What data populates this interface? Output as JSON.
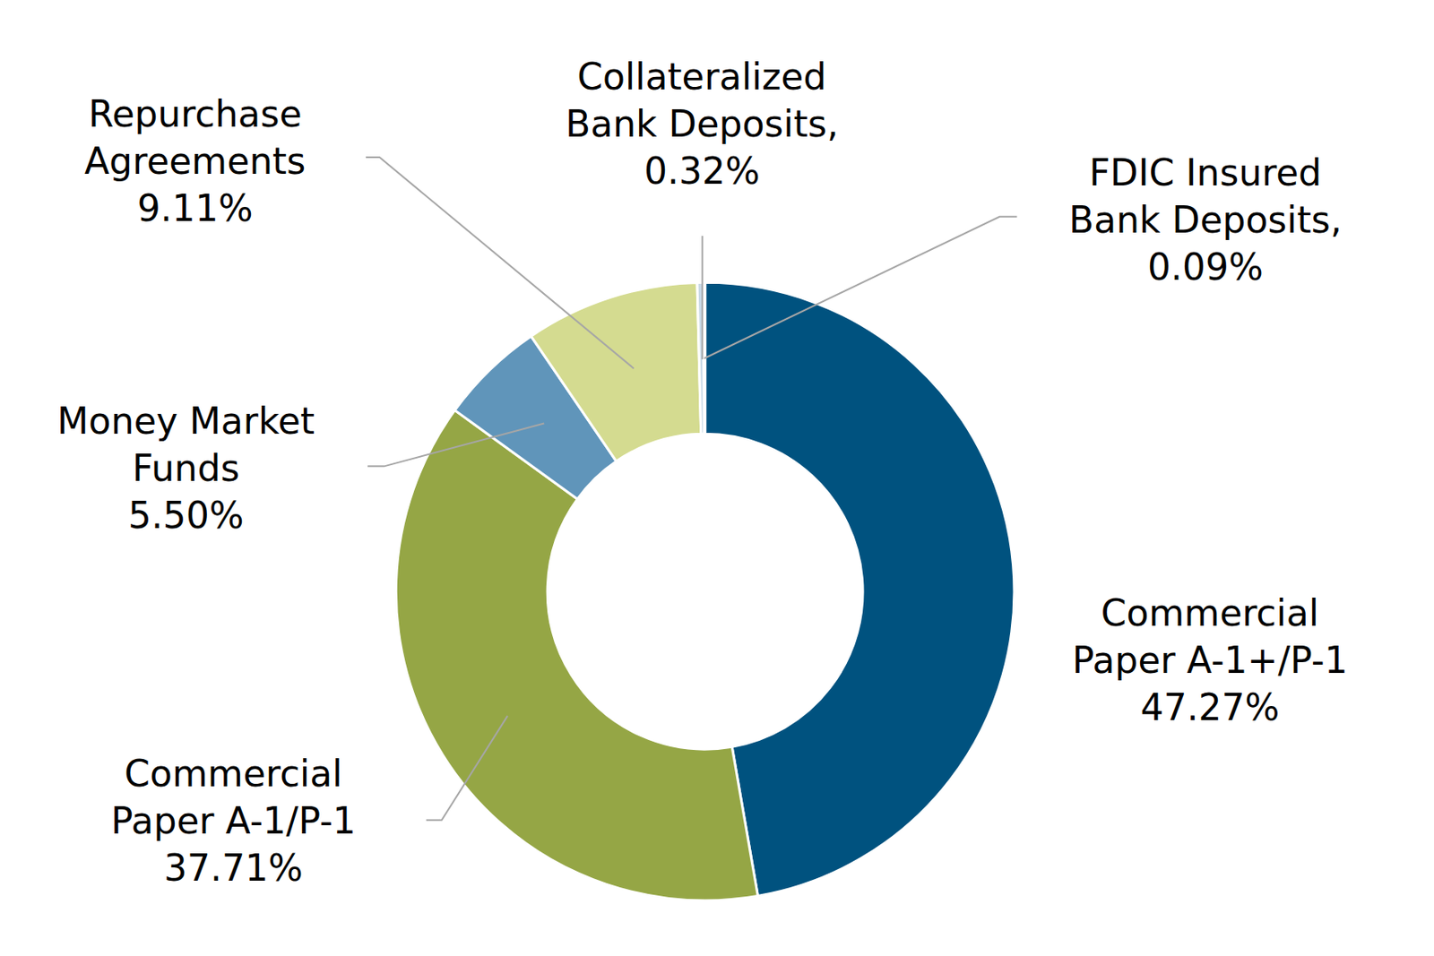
{
  "chart_data": {
    "type": "pie",
    "categories": [
      "Commercial Paper A-1+/P-1",
      "Commercial Paper A-1/P-1",
      "Money Market Funds",
      "Repurchase Agreements",
      "Collateralized Bank Deposits,",
      "FDIC Insured Bank Deposits,"
    ],
    "values": [
      47.27,
      37.71,
      5.5,
      9.11,
      0.32,
      0.09
    ],
    "value_labels": [
      "47.27%",
      "37.71%",
      "5.50%",
      "9.11%",
      "0.32%",
      "0.09%"
    ],
    "colors": [
      "#00527f",
      "#95a645",
      "#6095ba",
      "#d4db90",
      "#c9d9e6",
      "#7f7f7f"
    ],
    "data_labels": true
  }
}
